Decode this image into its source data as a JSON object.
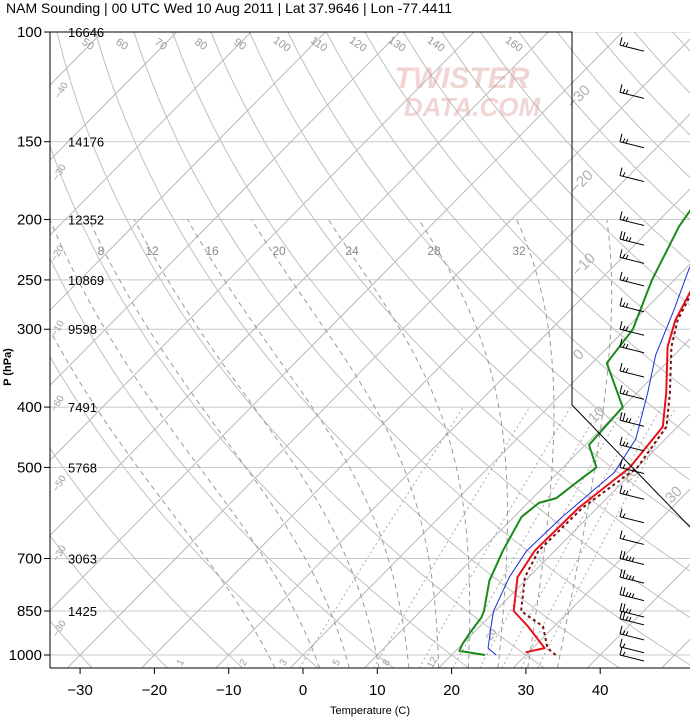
{
  "title": "NAM Sounding | 00 UTC Wed 10 Aug 2011 | Lat 37.9646 | Lon -77.4411",
  "watermark": {
    "line1": "TWISTER",
    "line2": "DATA.COM"
  },
  "chart_data": {
    "type": "line",
    "title": "NAM Sounding | 00 UTC Wed 10 Aug 2011 | Lat 37.9646 | Lon -77.4411",
    "xlabel": "Temperature (C)",
    "ylabel": "P (hPa)",
    "log_pressure_axis": true,
    "skew": "skew-T log-p",
    "xlim": [
      -34,
      47
    ],
    "ylim": [
      1030,
      100
    ],
    "x_ticks": [
      "−30",
      "−20",
      "−10",
      "0",
      "10",
      "20",
      "30",
      "40"
    ],
    "x_tick_values": [
      -30,
      -20,
      -10,
      0,
      10,
      20,
      30,
      40
    ],
    "pressure_ticks": [
      1000,
      850,
      700,
      500,
      400,
      300,
      250,
      200,
      150,
      100
    ],
    "pressure_tick_labels": [
      "1000",
      "850",
      "700",
      "500",
      "400",
      "300",
      "250",
      "200",
      "150",
      "100"
    ],
    "heights": [
      {
        "p": 1000,
        "label": ""
      },
      {
        "p": 850,
        "label": "1425"
      },
      {
        "p": 700,
        "label": "3063"
      },
      {
        "p": 500,
        "label": "5768"
      },
      {
        "p": 400,
        "label": "7491"
      },
      {
        "p": 300,
        "label": "9598"
      },
      {
        "p": 250,
        "label": "10869"
      },
      {
        "p": 200,
        "label": "12352"
      },
      {
        "p": 150,
        "label": "14176"
      },
      {
        "p": 100,
        "label": "16646"
      }
    ],
    "isotherm_labels": [
      "−100",
      "−90",
      "−80",
      "−70",
      "−60",
      "−50",
      "−40",
      "−30",
      "−20",
      "−10",
      "0",
      "10",
      "20",
      "30"
    ],
    "dry_adiabat_labels": [
      "100",
      "110",
      "120",
      "130",
      "140",
      "150",
      "160",
      "90",
      "80",
      "70",
      "60",
      "50",
      "40",
      "30",
      "20"
    ],
    "moist_adiabat_labels": [
      "1",
      "2",
      "3",
      "5",
      "8",
      "12",
      "20"
    ],
    "mixing_ratio_labels": [
      "8",
      "12",
      "16",
      "20",
      "24",
      "28",
      "32"
    ],
    "series": [
      {
        "name": "",
        "role": "temperature",
        "color": "#e8101a",
        "points": [
          [
            29.6,
            990
          ],
          [
            31.6,
            975
          ],
          [
            26.5,
            900
          ],
          [
            22.5,
            850
          ],
          [
            18.5,
            750
          ],
          [
            17.3,
            680
          ],
          [
            17.5,
            580
          ],
          [
            19.0,
            500
          ],
          [
            18.0,
            430
          ],
          [
            14.0,
            380
          ],
          [
            8.0,
            320
          ],
          [
            5.5,
            290
          ],
          [
            3.0,
            250
          ],
          [
            -2.0,
            205
          ],
          [
            -4.0,
            170
          ],
          [
            -2.5,
            150
          ],
          [
            -1.8,
            123
          ],
          [
            1.5,
            110
          ],
          [
            5.5,
            100
          ]
        ]
      },
      {
        "name": "",
        "role": "virtual_temperature",
        "color": "#7a1010",
        "dashed": true,
        "points": [
          [
            34.0,
            1000
          ],
          [
            32.0,
            975
          ],
          [
            28.5,
            900
          ],
          [
            23.5,
            850
          ],
          [
            19.5,
            750
          ],
          [
            17.8,
            680
          ],
          [
            18.0,
            580
          ],
          [
            20.0,
            500
          ],
          [
            18.5,
            430
          ],
          [
            14.5,
            380
          ],
          [
            8.5,
            320
          ],
          [
            5.8,
            290
          ],
          [
            3.2,
            250
          ],
          [
            -2.0,
            205
          ],
          [
            -4.0,
            170
          ],
          [
            -2.5,
            150
          ],
          [
            -1.8,
            123
          ],
          [
            1.5,
            110
          ],
          [
            5.5,
            100
          ]
        ]
      },
      {
        "name": "",
        "role": "parcel",
        "color": "#1a2fd6",
        "points": [
          [
            26.0,
            1000
          ],
          [
            24.0,
            975
          ],
          [
            21.5,
            900
          ],
          [
            19.8,
            850
          ],
          [
            17.4,
            750
          ],
          [
            16.2,
            680
          ],
          [
            16.5,
            600
          ],
          [
            17.2,
            540
          ],
          [
            17.6,
            510
          ],
          [
            16.0,
            450
          ],
          [
            11.5,
            380
          ],
          [
            7.5,
            330
          ],
          [
            4.0,
            280
          ],
          [
            0.5,
            240
          ],
          [
            -2.2,
            205
          ],
          [
            -4.0,
            170
          ],
          [
            -2.6,
            150
          ],
          [
            -2.0,
            123
          ],
          [
            1.2,
            110
          ],
          [
            5.0,
            100
          ]
        ]
      },
      {
        "name": "",
        "role": "dewpoint",
        "color": "#1a8a1a",
        "points": [
          [
            24.5,
            1000
          ],
          [
            20.5,
            985
          ],
          [
            20.0,
            960
          ],
          [
            19.5,
            920
          ],
          [
            19.0,
            870
          ],
          [
            18.5,
            850
          ],
          [
            15.2,
            760
          ],
          [
            13.0,
            680
          ],
          [
            11.0,
            600
          ],
          [
            11.5,
            570
          ],
          [
            13.2,
            560
          ],
          [
            14.0,
            520
          ],
          [
            14.5,
            500
          ],
          [
            10.5,
            460
          ],
          [
            10.0,
            400
          ],
          [
            2.0,
            340
          ],
          [
            1.0,
            300
          ],
          [
            -3.0,
            250
          ],
          [
            -6.5,
            205
          ],
          [
            -8.5,
            170
          ],
          [
            -8.0,
            150
          ],
          [
            -4.5,
            123
          ],
          [
            -1.5,
            110
          ],
          [
            1.0,
            100
          ]
        ]
      }
    ],
    "wind_barbs": [
      {
        "p": 1000,
        "speed_kt": 10
      },
      {
        "p": 970,
        "speed_kt": 10
      },
      {
        "p": 925,
        "speed_kt": 15
      },
      {
        "p": 875,
        "speed_kt": 20
      },
      {
        "p": 850,
        "speed_kt": 20
      },
      {
        "p": 800,
        "speed_kt": 25
      },
      {
        "p": 750,
        "speed_kt": 25
      },
      {
        "p": 700,
        "speed_kt": 25
      },
      {
        "p": 650,
        "speed_kt": 10
      },
      {
        "p": 600,
        "speed_kt": 10
      },
      {
        "p": 550,
        "speed_kt": 15
      },
      {
        "p": 500,
        "speed_kt": 10
      },
      {
        "p": 460,
        "speed_kt": 15
      },
      {
        "p": 420,
        "speed_kt": 20
      },
      {
        "p": 380,
        "speed_kt": 15
      },
      {
        "p": 350,
        "speed_kt": 15
      },
      {
        "p": 320,
        "speed_kt": 15
      },
      {
        "p": 300,
        "speed_kt": 15
      },
      {
        "p": 275,
        "speed_kt": 15
      },
      {
        "p": 250,
        "speed_kt": 15
      },
      {
        "p": 230,
        "speed_kt": 15
      },
      {
        "p": 215,
        "speed_kt": 20
      },
      {
        "p": 200,
        "speed_kt": 15
      },
      {
        "p": 170,
        "speed_kt": 10
      },
      {
        "p": 150,
        "speed_kt": 15
      },
      {
        "p": 125,
        "speed_kt": 15
      },
      {
        "p": 105,
        "speed_kt": 15
      }
    ]
  }
}
